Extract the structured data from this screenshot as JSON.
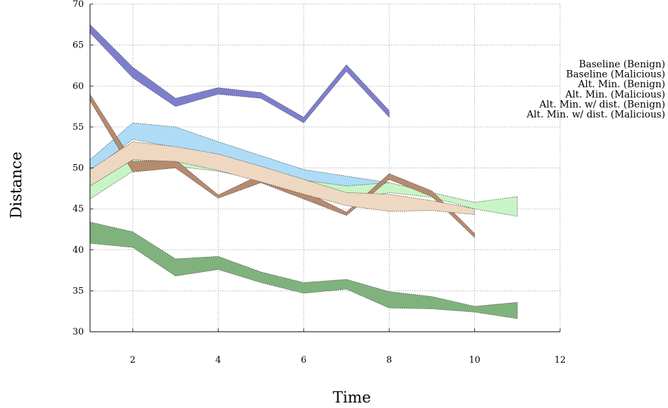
{
  "chart_data": {
    "type": "area",
    "title": "",
    "xlabel": "Time",
    "ylabel": "Distance",
    "xlim": [
      1,
      12
    ],
    "ylim": [
      30,
      70
    ],
    "xticks": [
      2,
      4,
      6,
      8,
      10,
      12
    ],
    "yticks": [
      30,
      35,
      40,
      45,
      50,
      55,
      60,
      65,
      70
    ],
    "grid": true,
    "legend_position": "top-right",
    "series": [
      {
        "name": "Baseline (Benign)",
        "color": "#aedcf7",
        "x": [
          1,
          2,
          3,
          4,
          5,
          6,
          7,
          8
        ],
        "lower": [
          49.5,
          53.5,
          52.5,
          51.0,
          49.8,
          48.5,
          47.5,
          47.0
        ],
        "upper": [
          51.0,
          55.5,
          55.0,
          53.2,
          51.5,
          49.8,
          49.0,
          48.2
        ]
      },
      {
        "name": "Baseline (Malicious)",
        "color": "#7d7fcd",
        "x": [
          1,
          2,
          3,
          4,
          5,
          6,
          7,
          8
        ],
        "lower": [
          66.5,
          61.0,
          57.5,
          59.0,
          58.5,
          55.5,
          61.8,
          56.2
        ],
        "upper": [
          67.5,
          62.3,
          58.5,
          59.8,
          59.2,
          56.2,
          62.6,
          57.0
        ]
      },
      {
        "name": "Alt. Min. (Benign)",
        "color": "#c8f5c6",
        "x": [
          1,
          2,
          3,
          4,
          5,
          6,
          7,
          8,
          9,
          10,
          11
        ],
        "lower": [
          46.2,
          49.6,
          50.2,
          49.6,
          48.5,
          47.2,
          46.0,
          47.0,
          46.4,
          45.0,
          44.1
        ],
        "upper": [
          47.8,
          51.0,
          51.2,
          51.0,
          49.8,
          48.5,
          47.8,
          48.2,
          47.0,
          45.8,
          46.5
        ]
      },
      {
        "name": "Alt. Min. (Malicious)",
        "color": "#b58a6e",
        "x": [
          1,
          2,
          3,
          4,
          5,
          6,
          7,
          8,
          9,
          10
        ],
        "lower": [
          58.2,
          49.5,
          50.0,
          46.3,
          48.2,
          46.2,
          44.2,
          48.6,
          46.5,
          41.5
        ],
        "upper": [
          59.0,
          50.8,
          51.0,
          46.7,
          49.2,
          47.2,
          44.6,
          49.3,
          47.2,
          42.0
        ]
      },
      {
        "name": "Alt. Min. w/ dist. (Benign)",
        "color": "#eed8c1",
        "x": [
          1,
          2,
          3,
          4,
          5,
          6,
          7,
          8,
          9,
          10
        ],
        "lower": [
          47.8,
          51.0,
          50.8,
          49.7,
          48.3,
          46.8,
          45.4,
          44.7,
          44.8,
          44.3
        ],
        "upper": [
          49.8,
          53.2,
          52.6,
          51.7,
          50.2,
          48.6,
          47.0,
          46.8,
          46.0,
          45.0
        ]
      },
      {
        "name": "Alt. Min. w/ dist. (Malicious)",
        "color": "#7fb27c",
        "x": [
          1,
          2,
          3,
          4,
          5,
          6,
          7,
          8,
          9,
          10,
          11
        ],
        "lower": [
          40.8,
          40.3,
          36.8,
          37.6,
          36.0,
          34.7,
          35.2,
          32.9,
          32.8,
          32.4,
          31.6
        ],
        "upper": [
          43.4,
          42.2,
          38.9,
          39.2,
          37.3,
          36.0,
          36.4,
          34.9,
          34.3,
          33.1,
          33.6
        ]
      }
    ]
  }
}
